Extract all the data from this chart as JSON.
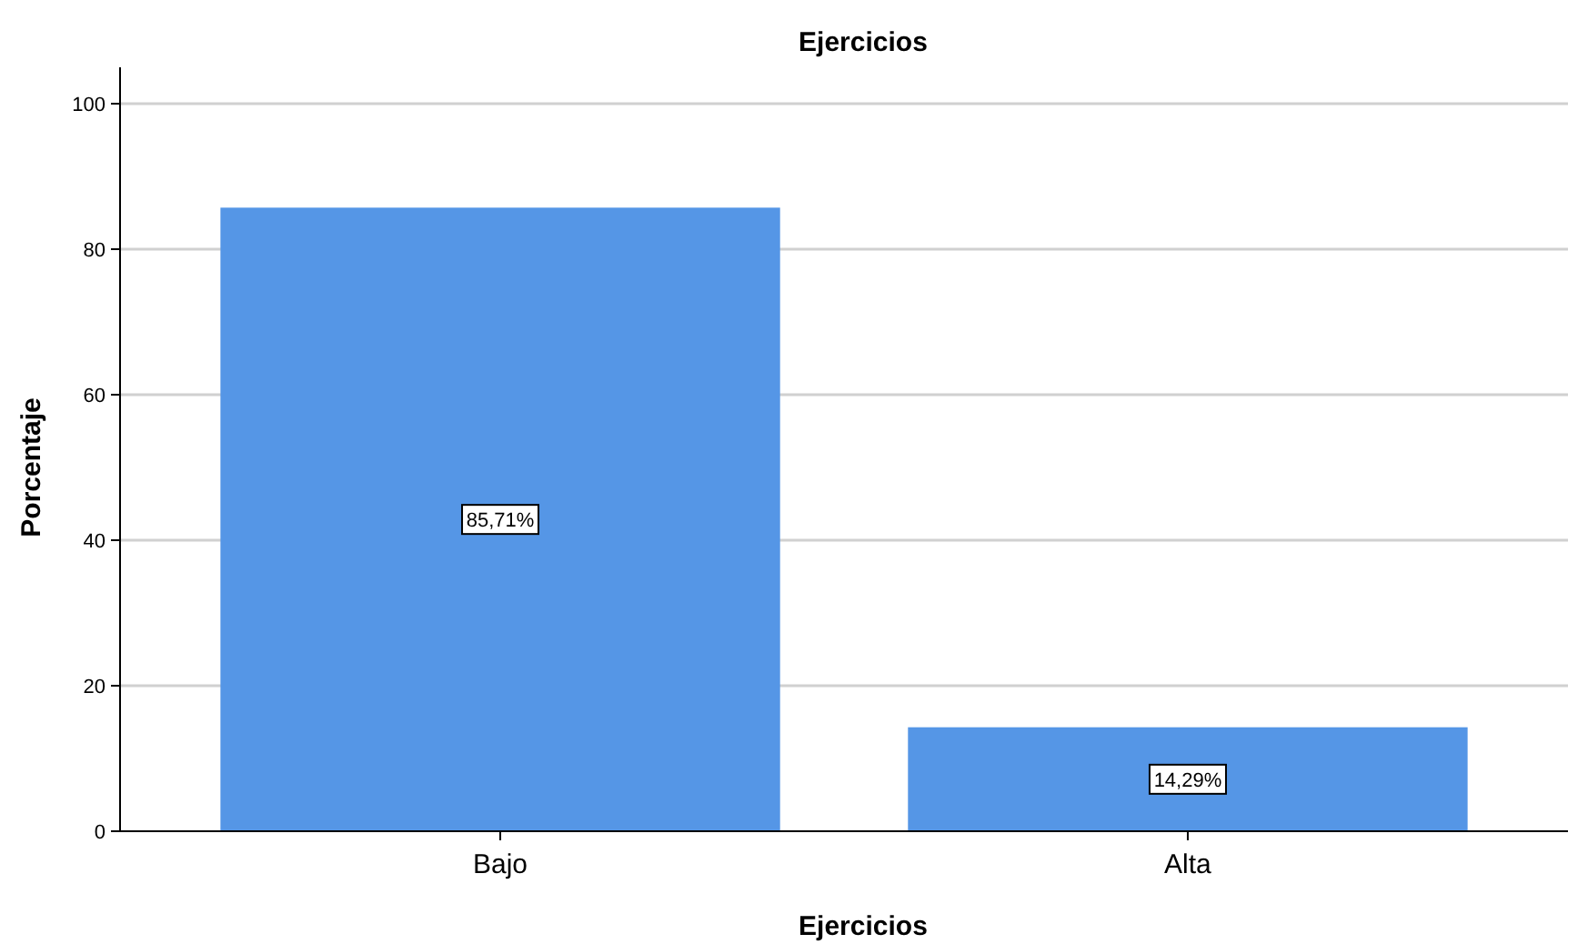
{
  "chart_data": {
    "type": "bar",
    "title": "Ejercicios",
    "xlabel": "Ejercicios",
    "ylabel": "Porcentaje",
    "categories": [
      "Bajo",
      "Alta"
    ],
    "values": [
      85.71,
      14.29
    ],
    "value_labels": [
      "85,71%",
      "14,29%"
    ],
    "color": "#5596e6",
    "ylim": [
      0,
      105
    ],
    "yticks": [
      0,
      20,
      40,
      60,
      80,
      100
    ],
    "grid": "y"
  }
}
